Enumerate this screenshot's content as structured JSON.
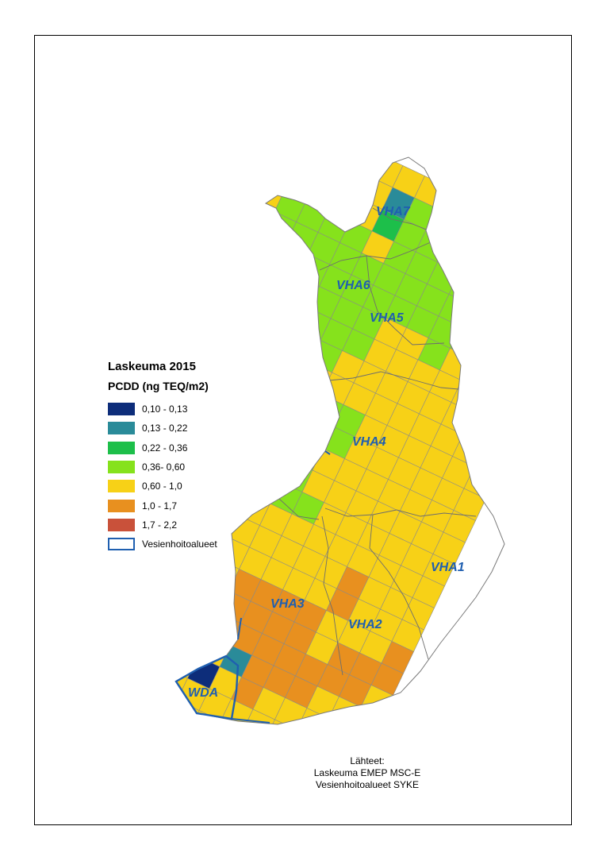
{
  "legend": {
    "title": "Laskeuma 2015",
    "subtitle": "PCDD (ng TEQ/m2)",
    "classes": [
      {
        "label": "0,10 - 0,13",
        "color": "#0d2d7a"
      },
      {
        "label": "0,13 - 0,22",
        "color": "#2a8b99"
      },
      {
        "label": "0,22 - 0,36",
        "color": "#1dbf4a"
      },
      {
        "label": "0,36- 0,60",
        "color": "#86e21c"
      },
      {
        "label": "0,60 - 1,0",
        "color": "#f7d117"
      },
      {
        "label": "1,0 - 1,7",
        "color": "#e8901f"
      },
      {
        "label": "1,7 - 2,2",
        "color": "#c9513a"
      }
    ],
    "boundary_label": "Vesienhoitoalueet",
    "boundary_color": "#1f5fb0"
  },
  "regions": [
    "VHA7",
    "VHA6",
    "VHA5",
    "VHA4",
    "VHA1",
    "VHA3",
    "VHA2",
    "WDA"
  ],
  "sources": {
    "heading": "Lähteet:",
    "line1": "Laskeuma EMEP MSC-E",
    "line2": "Vesienhoitoalueet SYKE"
  }
}
